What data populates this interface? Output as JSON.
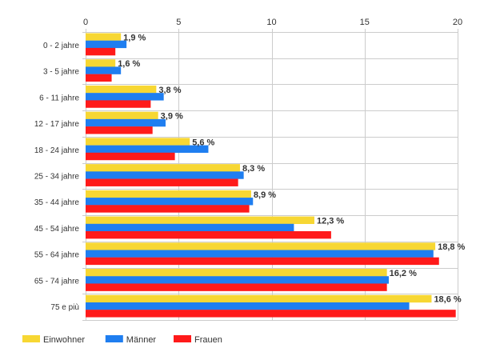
{
  "chart_data": {
    "type": "bar",
    "orientation": "horizontal",
    "title": "",
    "xlabel": "",
    "ylabel": "",
    "xlim": [
      0,
      20
    ],
    "x_ticks": [
      0,
      5,
      10,
      15,
      20
    ],
    "x_axis_position": "top",
    "grid": true,
    "legend_position": "bottom-left",
    "categories": [
      "0 - 2 jahre",
      "3 - 5 jahre",
      "6 - 11 jahre",
      "12 - 17 jahre",
      "18 - 24 jahre",
      "25 - 34 jahre",
      "35 - 44 jahre",
      "45 - 54 jahre",
      "55 - 64 jahre",
      "65 - 74 jahre",
      "75 e più"
    ],
    "series": [
      {
        "name": "Einwohner",
        "color": "#f7d733",
        "values": [
          1.9,
          1.6,
          3.8,
          3.9,
          5.6,
          8.3,
          8.9,
          12.3,
          18.8,
          16.2,
          18.6
        ]
      },
      {
        "name": "Männer",
        "color": "#1f7ef0",
        "values": [
          2.2,
          1.9,
          4.2,
          4.3,
          6.6,
          8.5,
          9.0,
          11.2,
          18.7,
          16.3,
          17.4
        ]
      },
      {
        "name": "Frauen",
        "color": "#ff1a1a",
        "values": [
          1.6,
          1.4,
          3.5,
          3.6,
          4.8,
          8.2,
          8.8,
          13.2,
          19.0,
          16.2,
          19.9
        ]
      }
    ],
    "data_labels": [
      "1,9 %",
      "1,6 %",
      "3,8 %",
      "3,9 %",
      "5,6 %",
      "8,3 %",
      "8,9 %",
      "12,3 %",
      "18,8 %",
      "16,2 %",
      "18,6 %"
    ]
  }
}
